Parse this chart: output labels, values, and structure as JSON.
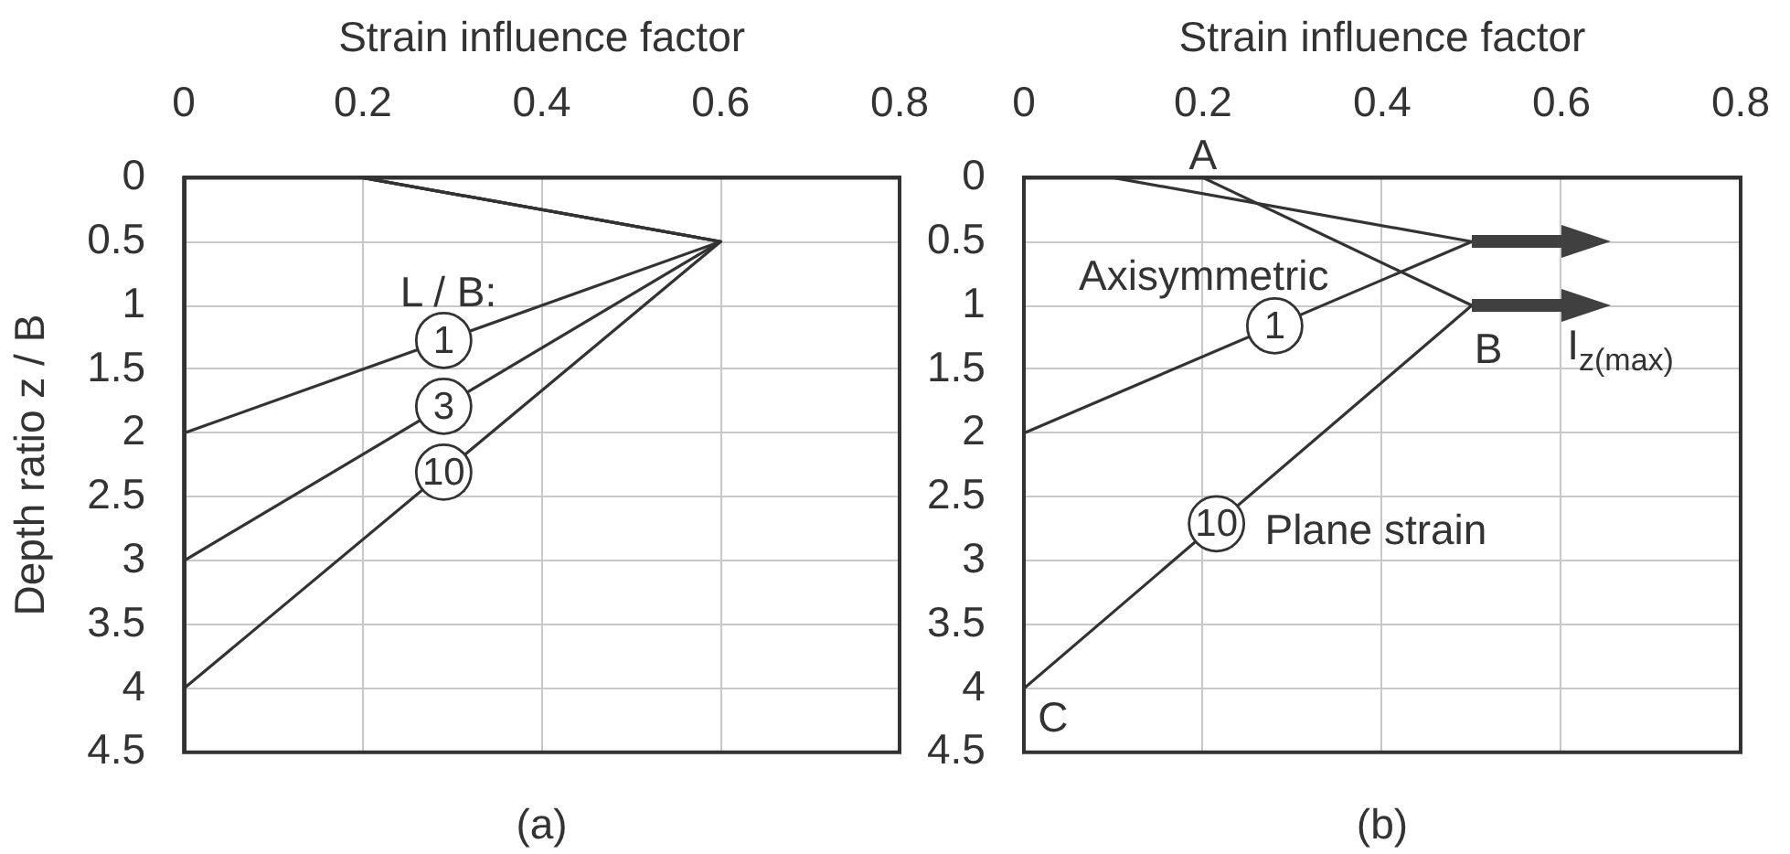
{
  "chart_data": [
    {
      "type": "line",
      "title": "(a)",
      "xlabel": "Strain influence factor",
      "ylabel": "Depth ratio z / B",
      "legend": "left",
      "legend_title": "L / B:",
      "series": [
        {
          "name": "1",
          "color": "#333333",
          "x": [
            0.2,
            0.6,
            0
          ],
          "values": [
            0,
            0.5,
            2
          ]
        },
        {
          "name": "3",
          "color": "#333333",
          "x": [
            0.2,
            0.6,
            0
          ],
          "values": [
            0,
            0.5,
            3
          ]
        },
        {
          "name": "10",
          "color": "#333333",
          "x": [
            0.2,
            0.6,
            0
          ],
          "values": [
            0,
            0.5,
            4
          ]
        }
      ],
      "xlim": [
        0,
        0.8
      ],
      "xticks": [
        0,
        0.2,
        0.4,
        0.6,
        0.8
      ],
      "ylim": [
        4.5,
        0
      ],
      "yticks": [
        0,
        0.5,
        1,
        1.5,
        2,
        2.5,
        3,
        3.5,
        4,
        4.5
      ],
      "grid": true,
      "marker": "none"
    },
    {
      "type": "line",
      "title": "(b)",
      "xlabel": "Strain influence factor",
      "series": [
        {
          "name": "1",
          "color": "#333333",
          "x": [
            0.1,
            0.5,
            0
          ],
          "values": [
            0,
            0.5,
            2
          ]
        },
        {
          "name": "10",
          "color": "#333333",
          "x": [
            0.2,
            0.5,
            0
          ],
          "values": [
            0,
            1,
            4
          ]
        }
      ],
      "annotations": [
        {
          "text": "A",
          "x": 0.2,
          "y": 0
        },
        {
          "text": "B",
          "x": 0.5,
          "y": 1
        },
        {
          "text": "C",
          "x": 0,
          "y": 4
        },
        "Axisymmetric",
        "Plane strain",
        "I$_{z(max)}$"
      ],
      "xlim": [
        0,
        0.8
      ],
      "xticks": [
        0,
        0.2,
        0.4,
        0.6,
        0.8
      ],
      "ylim": [
        4.5,
        0
      ],
      "yticks": [
        0,
        0.5,
        1,
        1.5,
        2,
        2.5,
        3,
        3.5,
        4,
        4.5
      ],
      "grid": true,
      "marker": "none"
    }
  ]
}
